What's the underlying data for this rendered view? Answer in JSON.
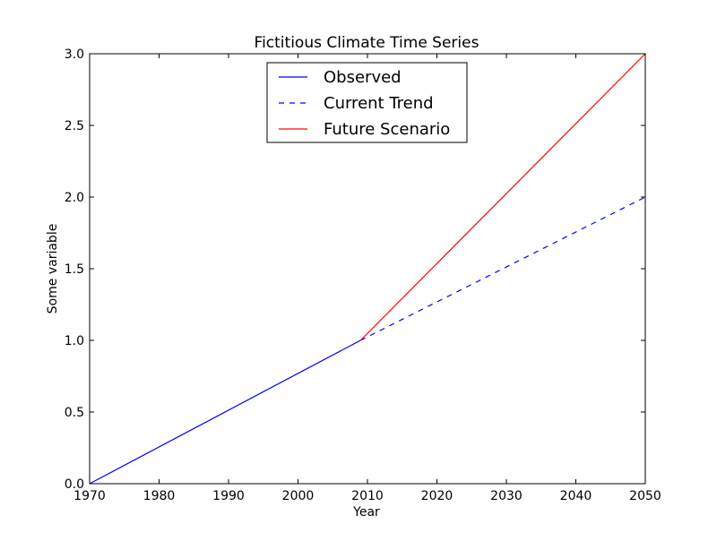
{
  "chart_data": {
    "type": "line",
    "title": "Fictitious Climate Time Series",
    "xlabel": "Year",
    "ylabel": "Some variable",
    "xlim": [
      1970,
      2050
    ],
    "ylim": [
      0.0,
      3.0
    ],
    "x_ticks": [
      1970,
      1980,
      1990,
      2000,
      2010,
      2020,
      2030,
      2040,
      2050
    ],
    "x_tick_labels": [
      "1970",
      "1980",
      "1990",
      "2000",
      "2010",
      "2020",
      "2030",
      "2040",
      "2050"
    ],
    "y_ticks": [
      0.0,
      0.5,
      1.0,
      1.5,
      2.0,
      2.5,
      3.0
    ],
    "y_tick_labels": [
      "0.0",
      "0.5",
      "1.0",
      "1.5",
      "2.0",
      "2.5",
      "3.0"
    ],
    "grid": false,
    "legend_position": "top-center",
    "series": [
      {
        "name": "Observed",
        "color": "#0000ff",
        "line_style": "solid",
        "x": [
          1970,
          2009
        ],
        "y": [
          0.0,
          1.0
        ]
      },
      {
        "name": "Current Trend",
        "color": "#0000ff",
        "line_style": "dashed",
        "x": [
          2009,
          2050
        ],
        "y": [
          1.0,
          2.0
        ]
      },
      {
        "name": "Future Scenario",
        "color": "#ff0000",
        "line_style": "solid",
        "x": [
          2009,
          2050
        ],
        "y": [
          1.0,
          3.0
        ]
      }
    ]
  }
}
